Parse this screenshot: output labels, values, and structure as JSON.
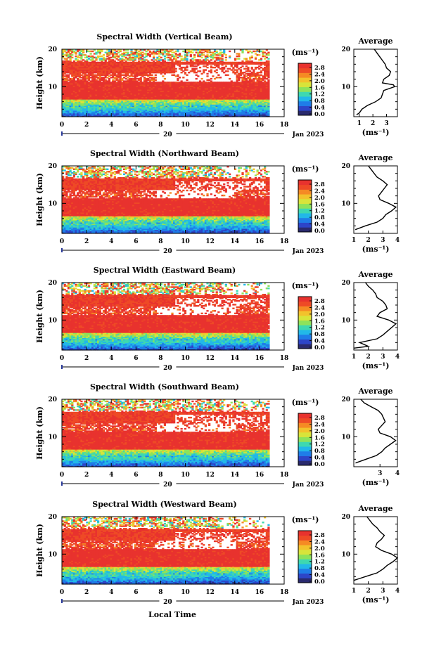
{
  "figure": {
    "xaxis_label": "Local Time",
    "height_label": "Height (km)",
    "units_label": "(ms⁻¹)",
    "date_label": "Jan 2023",
    "day_label": "20",
    "average_title": "Average"
  },
  "colorbar": {
    "ticks": [
      "2.8",
      "2.4",
      "2.0",
      "1.6",
      "1.2",
      "0.8",
      "0.4",
      "0.0"
    ],
    "colors": [
      "#2a2a6e",
      "#2d45c8",
      "#1f7de8",
      "#22b8e8",
      "#3ed8b0",
      "#8ee25a",
      "#d8e43a",
      "#f2c22c",
      "#f58a24",
      "#ee4a26",
      "#e8322e"
    ]
  },
  "chart_data": [
    {
      "type": "heatmap",
      "title": "Spectral Width (Vertical Beam)",
      "x_range": [
        0,
        18
      ],
      "x_ticks": [
        0,
        2,
        4,
        6,
        8,
        10,
        12,
        14,
        16,
        18
      ],
      "y_range": [
        2,
        20
      ],
      "y_ticks": [
        10,
        20
      ],
      "data_x_extent": [
        0,
        16.8
      ],
      "profile": {
        "x_range": [
          0.6,
          3.8
        ],
        "x_ticks": [
          1,
          2,
          3
        ],
        "height": [
          2.5,
          3,
          4,
          5,
          6,
          7,
          8,
          9,
          10,
          10.5,
          11,
          12,
          13,
          14,
          15,
          16,
          17,
          18,
          19,
          20
        ],
        "value": [
          0.8,
          1.0,
          1.2,
          1.6,
          2.2,
          2.6,
          2.7,
          2.8,
          3.6,
          3.5,
          2.7,
          2.8,
          3.2,
          3.3,
          3.0,
          2.9,
          2.7,
          2.5,
          2.3,
          2.1
        ]
      }
    },
    {
      "type": "heatmap",
      "title": "Spectral Width (Northward Beam)",
      "x_range": [
        0,
        18
      ],
      "x_ticks": [
        0,
        2,
        4,
        6,
        8,
        10,
        12,
        14,
        16,
        18
      ],
      "y_range": [
        2,
        20
      ],
      "y_ticks": [
        10,
        20
      ],
      "data_x_extent": [
        0,
        16.8
      ],
      "profile": {
        "x_range": [
          1,
          4
        ],
        "x_ticks": [
          1,
          2,
          3,
          4
        ],
        "height": [
          3,
          4,
          5,
          6,
          7,
          8,
          9,
          10,
          11,
          12,
          13,
          14,
          15,
          16,
          17,
          18,
          19,
          20
        ],
        "value": [
          1.1,
          1.8,
          2.6,
          3.0,
          3.2,
          3.6,
          3.9,
          3.4,
          2.8,
          2.7,
          2.9,
          3.1,
          3.3,
          3.0,
          2.6,
          2.4,
          2.2,
          2.0
        ]
      }
    },
    {
      "type": "heatmap",
      "title": "Spectral Width (Eastward Beam)",
      "x_range": [
        0,
        18
      ],
      "x_ticks": [
        0,
        2,
        4,
        6,
        8,
        10,
        12,
        14,
        16,
        18
      ],
      "y_range": [
        2,
        20
      ],
      "y_ticks": [
        10,
        20
      ],
      "data_x_extent": [
        0,
        16.8
      ],
      "profile": {
        "x_range": [
          1,
          4
        ],
        "x_ticks": [
          1,
          2,
          3,
          4
        ],
        "height": [
          2.5,
          3,
          4,
          5,
          6,
          7,
          8,
          9,
          10,
          11,
          12,
          13,
          14,
          15,
          16,
          17,
          18,
          19,
          20
        ],
        "value": [
          1.0,
          2.0,
          1.4,
          2.6,
          3.0,
          3.3,
          3.6,
          3.9,
          3.4,
          2.6,
          2.8,
          3.3,
          3.2,
          3.0,
          2.6,
          2.5,
          2.3,
          2.0,
          1.8
        ]
      }
    },
    {
      "type": "heatmap",
      "title": "Spectral Width (Southward Beam)",
      "x_range": [
        0,
        18
      ],
      "x_ticks": [
        0,
        2,
        4,
        6,
        8,
        10,
        12,
        14,
        16,
        18
      ],
      "y_range": [
        2,
        20
      ],
      "y_ticks": [
        10,
        20
      ],
      "data_x_extent": [
        0,
        16.8
      ],
      "profile": {
        "x_range": [
          1.5,
          4
        ],
        "x_ticks": [
          3,
          4
        ],
        "height": [
          3,
          4,
          5,
          6,
          7,
          8,
          9,
          10,
          11,
          12,
          13,
          14,
          15,
          16,
          17,
          18,
          19,
          20
        ],
        "value": [
          1.6,
          2.2,
          2.8,
          3.1,
          3.3,
          3.6,
          3.9,
          3.6,
          3.0,
          2.9,
          3.1,
          3.3,
          3.2,
          3.1,
          2.9,
          2.5,
          2.1,
          1.9
        ]
      }
    },
    {
      "type": "heatmap",
      "title": "Spectral Width (Westward Beam)",
      "x_range": [
        0,
        18
      ],
      "x_ticks": [
        0,
        2,
        4,
        6,
        8,
        10,
        12,
        14,
        16,
        18
      ],
      "y_range": [
        2,
        20
      ],
      "y_ticks": [
        10,
        20
      ],
      "data_x_extent": [
        0,
        16.8
      ],
      "profile": {
        "x_range": [
          1,
          4
        ],
        "x_ticks": [
          1,
          2,
          3,
          4
        ],
        "height": [
          3,
          4,
          5,
          6,
          7,
          8,
          9,
          10,
          11,
          12,
          13,
          14,
          15,
          16,
          17,
          18,
          19,
          20
        ],
        "value": [
          1.0,
          1.8,
          2.6,
          3.0,
          3.3,
          3.7,
          4.0,
          3.6,
          2.9,
          2.5,
          2.6,
          2.9,
          3.1,
          2.8,
          2.6,
          2.3,
          2.1,
          1.9
        ]
      }
    }
  ]
}
